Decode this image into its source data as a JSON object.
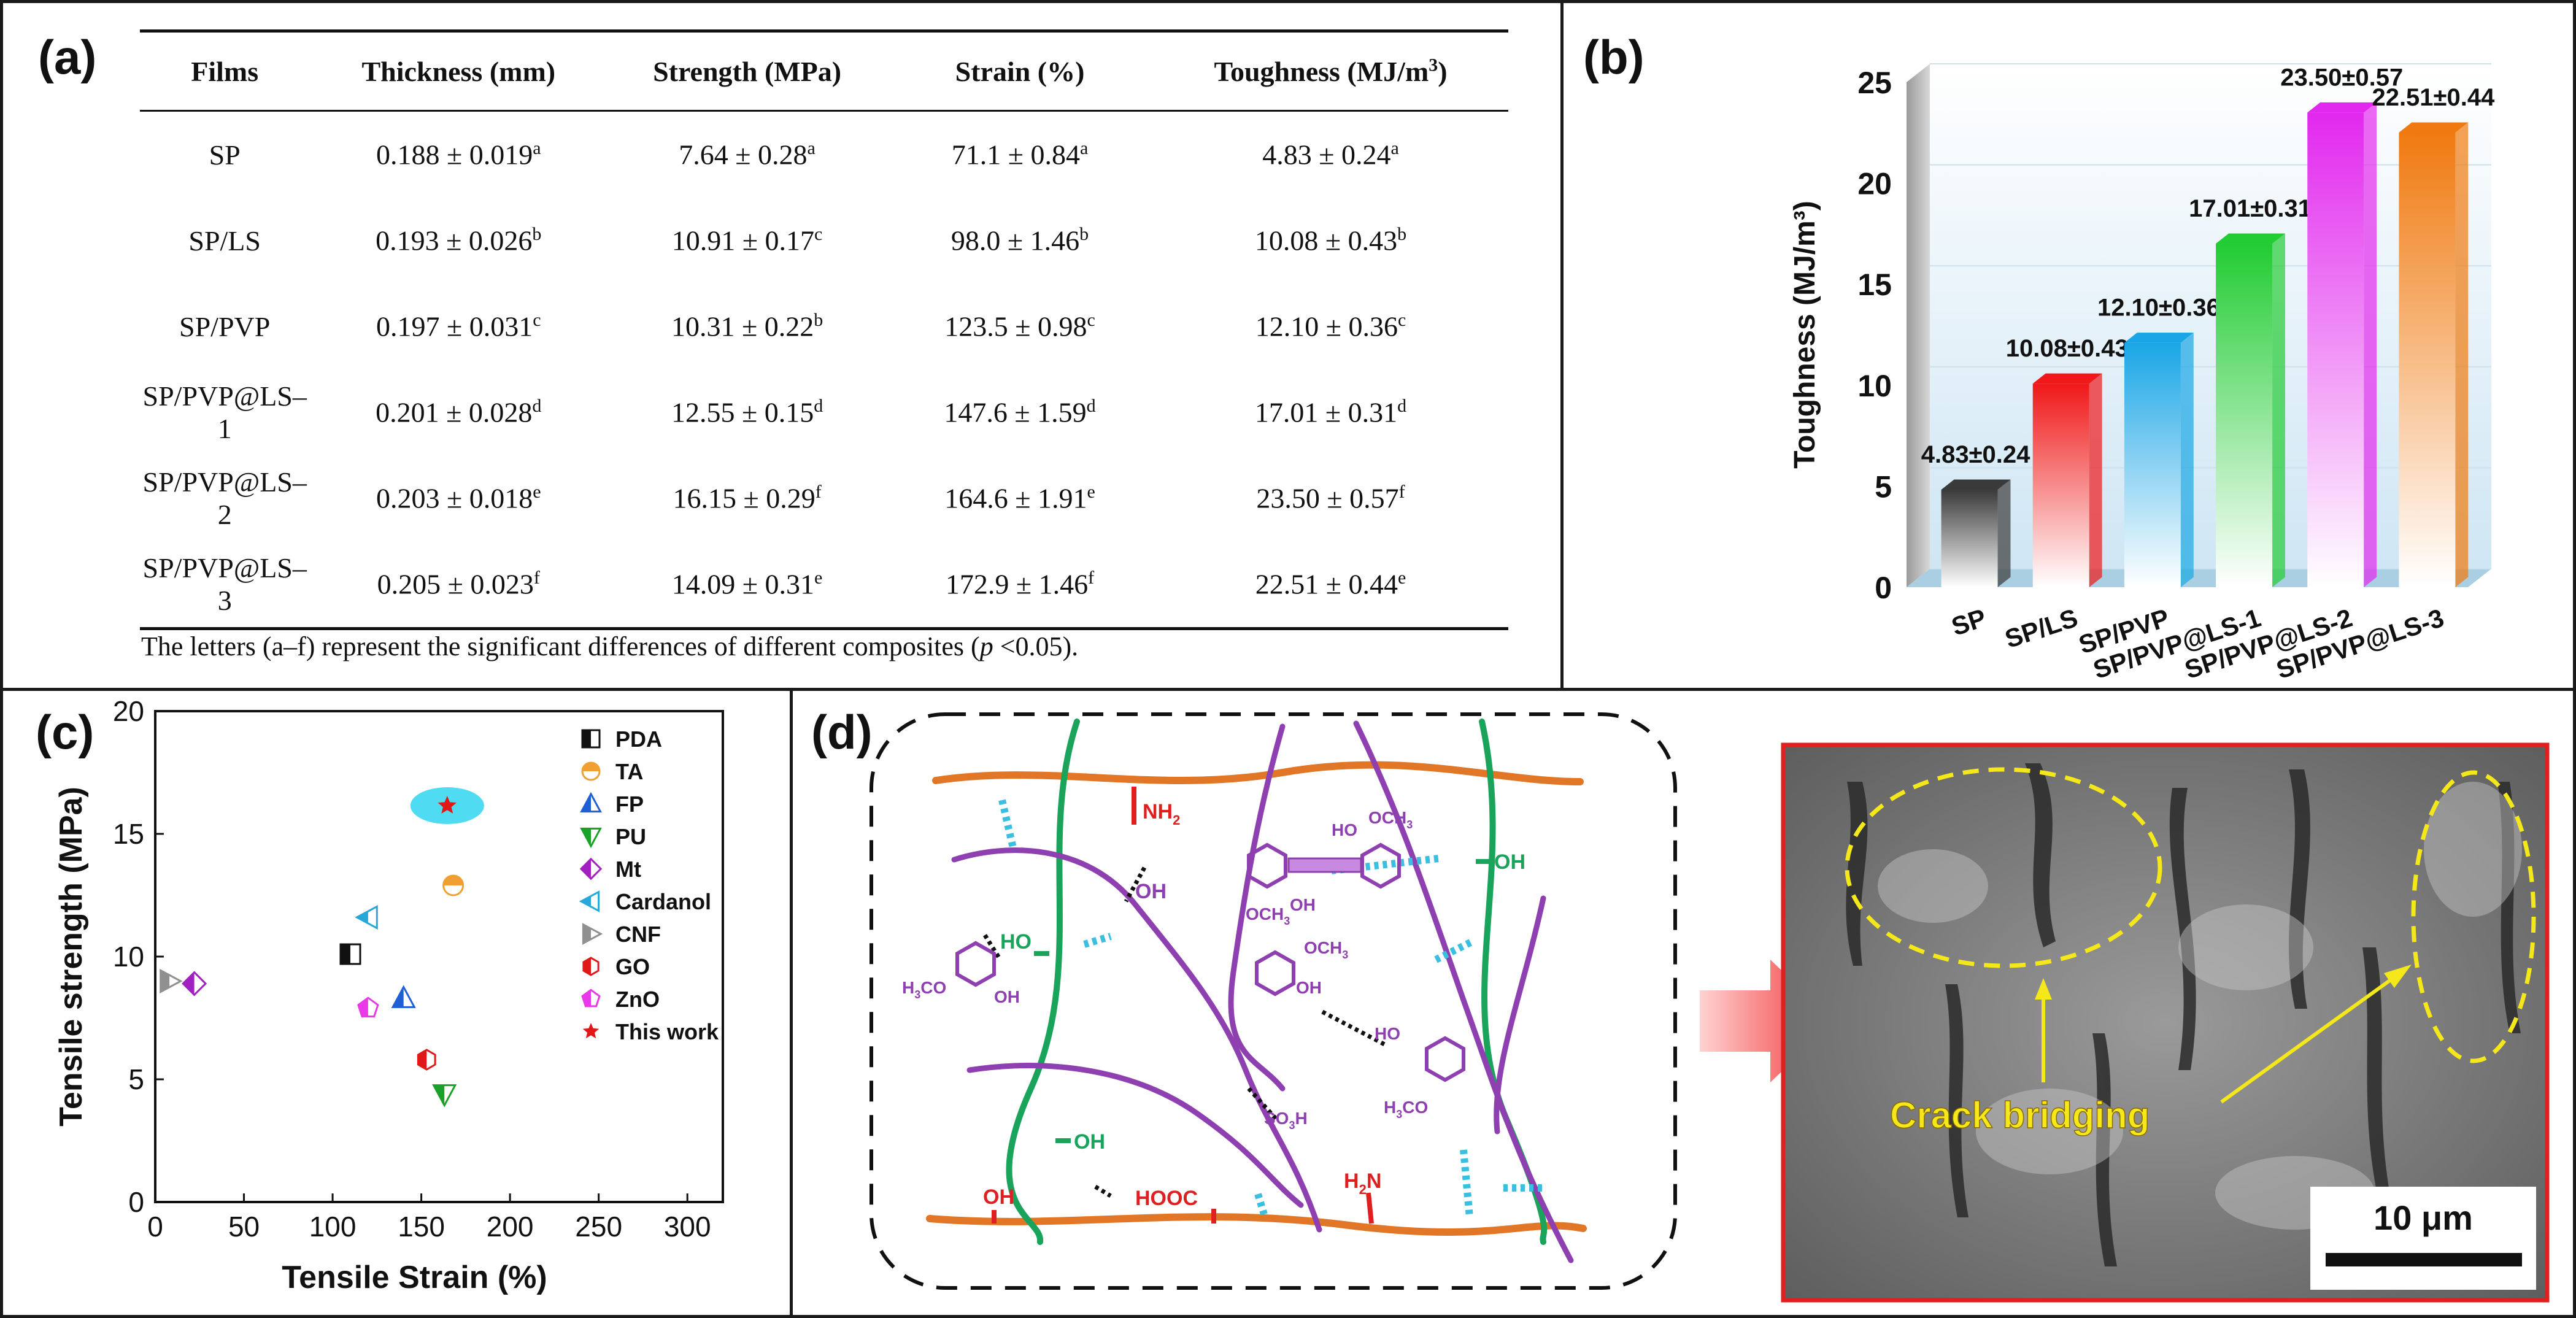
{
  "panel_labels": {
    "a": "(a)",
    "b": "(b)",
    "c": "(c)",
    "d": "(d)"
  },
  "colors": {
    "orange_chain": "#e07626",
    "green_chain": "#1aa35a",
    "purple_chain": "#8e3fb0",
    "cyan_bond": "#3bbfe0",
    "red_text": "#e02020",
    "highlight": "#4fdcf2",
    "sem_border": "#e02020",
    "crack_label": "#f5e81a"
  },
  "table": {
    "headers": [
      "Films",
      "Thickness (mm)",
      "Strength (MPa)",
      "Strain (%)",
      "Toughness (MJ/m³)"
    ],
    "rows": [
      {
        "film": "SP",
        "thickness": "0.188 ± 0.019",
        "thickness_sup": "a",
        "strength": "7.64 ± 0.28",
        "strength_sup": "a",
        "strain": "71.1 ± 0.84",
        "strain_sup": "a",
        "toughness": "4.83 ± 0.24",
        "toughness_sup": "a"
      },
      {
        "film": "SP/LS",
        "thickness": "0.193 ± 0.026",
        "thickness_sup": "b",
        "strength": "10.91 ± 0.17",
        "strength_sup": "c",
        "strain": "98.0 ± 1.46",
        "strain_sup": "b",
        "toughness": "10.08 ± 0.43",
        "toughness_sup": "b"
      },
      {
        "film": "SP/PVP",
        "thickness": "0.197 ± 0.031",
        "thickness_sup": "c",
        "strength": "10.31 ± 0.22",
        "strength_sup": "b",
        "strain": "123.5 ± 0.98",
        "strain_sup": "c",
        "toughness": "12.10 ± 0.36",
        "toughness_sup": "c"
      },
      {
        "film": "SP/PVP@LS–1",
        "thickness": "0.201 ± 0.028",
        "thickness_sup": "d",
        "strength": "12.55 ± 0.15",
        "strength_sup": "d",
        "strain": "147.6 ± 1.59",
        "strain_sup": "d",
        "toughness": "17.01 ± 0.31",
        "toughness_sup": "d"
      },
      {
        "film": "SP/PVP@LS–2",
        "thickness": "0.203 ± 0.018",
        "thickness_sup": "e",
        "strength": "16.15 ± 0.29",
        "strength_sup": "f",
        "strain": "164.6 ± 1.91",
        "strain_sup": "e",
        "toughness": "23.50 ± 0.57",
        "toughness_sup": "f"
      },
      {
        "film": "SP/PVP@LS–3",
        "thickness": "0.205 ± 0.023",
        "thickness_sup": "f",
        "strength": "14.09 ± 0.31",
        "strength_sup": "e",
        "strain": "172.9 ± 1.46",
        "strain_sup": "f",
        "toughness": "22.51 ± 0.44",
        "toughness_sup": "e"
      }
    ],
    "note_pre": "The letters (a–f) represent the significant differences of different composites (",
    "note_p": "p",
    "note_post": " <0.05)."
  },
  "chart_data": [
    {
      "type": "bar",
      "title": "",
      "xlabel": "",
      "ylabel": "Toughness (MJ/m³)",
      "ylim": [
        0,
        25
      ],
      "yticks": [
        0,
        5,
        10,
        15,
        20,
        25
      ],
      "categories": [
        "SP",
        "SP/LS",
        "SP/PVP",
        "SP/PVP@LS-1",
        "SP/PVP@LS-2",
        "SP/PVP@LS-3"
      ],
      "values": [
        4.83,
        10.08,
        12.1,
        17.01,
        23.5,
        22.51
      ],
      "data_labels": [
        "4.83±0.24",
        "10.08±0.43",
        "12.10±0.36",
        "17.01±0.31",
        "23.50±0.57",
        "22.51±0.44"
      ],
      "bar_colors": [
        "#3a3a3a",
        "#f01818",
        "#1aa6e6",
        "#22cc33",
        "#e228ee",
        "#f07a10"
      ]
    },
    {
      "type": "scatter",
      "xlabel": "Tensile Strain (%)",
      "ylabel": "Tensile strength (MPa)",
      "xlim": [
        0,
        320
      ],
      "ylim": [
        0,
        20
      ],
      "xticks": [
        0,
        50,
        100,
        150,
        200,
        250,
        300
      ],
      "yticks": [
        0,
        5,
        10,
        15,
        20
      ],
      "legend_position": "top-right",
      "series": [
        {
          "name": "PDA",
          "x": 110,
          "y": 10.1,
          "color": "#111111",
          "marker": "half-square"
        },
        {
          "name": "TA",
          "x": 168,
          "y": 12.9,
          "color": "#f0a030",
          "marker": "half-circle"
        },
        {
          "name": "FP",
          "x": 140,
          "y": 8.3,
          "color": "#1f5fd6",
          "marker": "half-triangle-up"
        },
        {
          "name": "PU",
          "x": 163,
          "y": 4.4,
          "color": "#1aa12a",
          "marker": "half-triangle-down"
        },
        {
          "name": "Mt",
          "x": 22,
          "y": 8.9,
          "color": "#a020c0",
          "marker": "half-diamond"
        },
        {
          "name": "Cardanol",
          "x": 120,
          "y": 11.6,
          "color": "#28a8d8",
          "marker": "half-triangle-left"
        },
        {
          "name": "CNF",
          "x": 8,
          "y": 9.0,
          "color": "#909090",
          "marker": "half-triangle-right"
        },
        {
          "name": "GO",
          "x": 153,
          "y": 5.8,
          "color": "#e01818",
          "marker": "half-hexagon"
        },
        {
          "name": "ZnO",
          "x": 120,
          "y": 7.9,
          "color": "#e838e8",
          "marker": "half-pentagon"
        },
        {
          "name": "This work",
          "x": 164.6,
          "y": 16.15,
          "color": "#e01818",
          "marker": "star"
        }
      ]
    }
  ],
  "diagram": {
    "labels": {
      "nh2": "NH",
      "nh2_sub": "2",
      "oh_top": "OH",
      "oh_green_right": "OH",
      "ho_green_left": "HO",
      "ho_top_ring": "HO",
      "och3_top_ring": "OCH",
      "och3_top_ring_sub": "3",
      "oh_ring1": "OH",
      "och3_ring1": "OCH",
      "och3_ring1_sub": "3",
      "h3co_left": "H",
      "h3co_left_sub": "3",
      "h3co_left_post": "CO",
      "oh_left_ring": "OH",
      "och3_mid": "OCH",
      "och3_mid_sub": "3",
      "oh_mid": "OH",
      "ho_right": "HO",
      "h3co_right": "H",
      "h3co_right_sub": "3",
      "h3co_right_post": "CO",
      "so3h": "SO",
      "so3h_sub": "3",
      "so3h_post": "H",
      "h2n": "H",
      "h2n_sub": "2",
      "h2n_post": "N",
      "oh_bottom_green": "OH",
      "hooc": "HOOC",
      "oh_bottom_red": "OH"
    },
    "sem": {
      "annotation": "Crack bridging",
      "scale_bar": "10 μm"
    }
  }
}
